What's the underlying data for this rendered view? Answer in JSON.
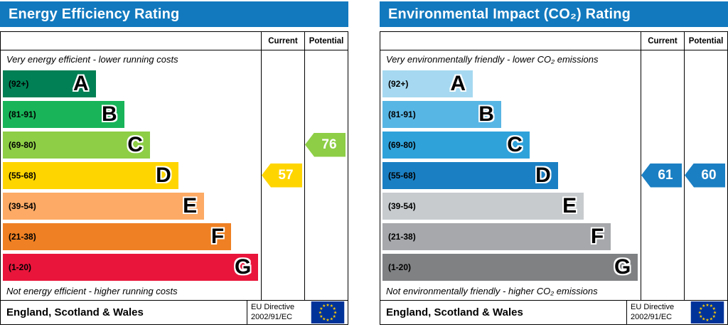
{
  "charts": [
    {
      "title": "Energy Efficiency Rating",
      "title_bg": "#1279be",
      "columns": {
        "current": "Current",
        "potential": "Potential"
      },
      "top_note": "Very energy efficient - lower running costs",
      "bottom_note": "Not energy efficient - higher running costs",
      "bands": [
        {
          "range": "(92+)",
          "letter": "A",
          "color": "#008054",
          "width_pct": 36
        },
        {
          "range": "(81-91)",
          "letter": "B",
          "color": "#19b459",
          "width_pct": 47
        },
        {
          "range": "(69-80)",
          "letter": "C",
          "color": "#8dce46",
          "width_pct": 57
        },
        {
          "range": "(55-68)",
          "letter": "D",
          "color": "#ffd500",
          "width_pct": 68
        },
        {
          "range": "(39-54)",
          "letter": "E",
          "color": "#fcaa65",
          "width_pct": 78
        },
        {
          "range": "(21-38)",
          "letter": "F",
          "color": "#ef8023",
          "width_pct": 88.5
        },
        {
          "range": "(1-20)",
          "letter": "G",
          "color": "#e9153b",
          "width_pct": 99
        }
      ],
      "current": {
        "value": "57",
        "band_index": 3,
        "color": "#ffd500"
      },
      "potential": {
        "value": "76",
        "band_index": 2,
        "color": "#8dce46"
      },
      "footer": {
        "region": "England, Scotland & Wales",
        "directive_line1": "EU Directive",
        "directive_line2": "2002/91/EC"
      }
    },
    {
      "title": "Environmental Impact (CO₂) Rating",
      "title_bg": "#1279be",
      "columns": {
        "current": "Current",
        "potential": "Potential"
      },
      "top_note": "Very environmentally friendly - lower CO₂ emissions",
      "bottom_note": "Not environmentally friendly - higher CO₂ emissions",
      "bands": [
        {
          "range": "(92+)",
          "letter": "A",
          "color": "#a6d9f1",
          "width_pct": 35
        },
        {
          "range": "(81-91)",
          "letter": "B",
          "color": "#58b6e4",
          "width_pct": 46
        },
        {
          "range": "(69-80)",
          "letter": "C",
          "color": "#2fa2da",
          "width_pct": 57
        },
        {
          "range": "(55-68)",
          "letter": "D",
          "color": "#1b7fc3",
          "width_pct": 68
        },
        {
          "range": "(39-54)",
          "letter": "E",
          "color": "#c7cbce",
          "width_pct": 78
        },
        {
          "range": "(21-38)",
          "letter": "F",
          "color": "#a6a8ab",
          "width_pct": 88.5
        },
        {
          "range": "(1-20)",
          "letter": "G",
          "color": "#7f8183",
          "width_pct": 99
        }
      ],
      "current": {
        "value": "61",
        "band_index": 3,
        "color": "#1b7fc3"
      },
      "potential": {
        "value": "60",
        "band_index": 3,
        "color": "#1b7fc3"
      },
      "footer": {
        "region": "England, Scotland & Wales",
        "directive_line1": "EU Directive",
        "directive_line2": "2002/91/EC"
      }
    }
  ],
  "chart_data": [
    {
      "type": "bar",
      "title": "Energy Efficiency Rating",
      "categories": [
        "A (92+)",
        "B (81-91)",
        "C (69-80)",
        "D (55-68)",
        "E (39-54)",
        "F (21-38)",
        "G (1-20)"
      ],
      "current_rating": 57,
      "current_band": "D",
      "potential_rating": 76,
      "potential_band": "C",
      "top_annotation": "Very energy efficient - lower running costs",
      "bottom_annotation": "Not energy efficient - higher running costs",
      "footer": "England, Scotland & Wales — EU Directive 2002/91/EC"
    },
    {
      "type": "bar",
      "title": "Environmental Impact (CO₂) Rating",
      "categories": [
        "A (92+)",
        "B (81-91)",
        "C (69-80)",
        "D (55-68)",
        "E (39-54)",
        "F (21-38)",
        "G (1-20)"
      ],
      "current_rating": 61,
      "current_band": "D",
      "potential_rating": 60,
      "potential_band": "D",
      "top_annotation": "Very environmentally friendly - lower CO₂ emissions",
      "bottom_annotation": "Not environmentally friendly - higher CO₂ emissions",
      "footer": "England, Scotland & Wales — EU Directive 2002/91/EC"
    }
  ]
}
